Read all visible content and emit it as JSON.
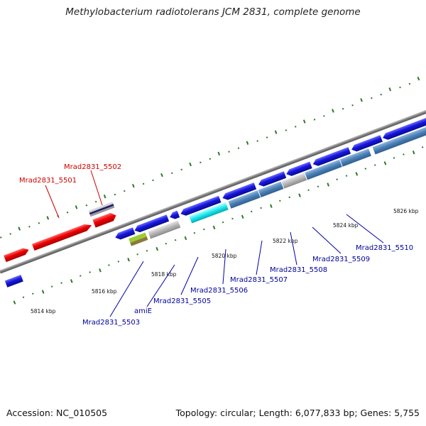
{
  "title": "Methylobacterium radiotolerans JCM 2831, complete genome",
  "footer": {
    "accession": "Accession: NC_010505",
    "stats": "Topology: circular; Length: 6,077,833 bp; Genes: 5,755"
  },
  "colors": {
    "backbone": "#8a8a8a",
    "forward_gene": "#e60000",
    "reverse_gene": "#1010d0",
    "steelblue_gene": "#4a7fb5",
    "gray_gene": "#b5b5b5",
    "cyan_gene": "#18e8f0",
    "forward_label": "#cc0000",
    "reverse_label": "#000099",
    "tick_mark": "#2a7a2a"
  },
  "ticks": [
    "5814 kbp",
    "5816 kbp",
    "5818 kbp",
    "5820 kbp",
    "5822 kbp",
    "5824 kbp",
    "5826 kbp"
  ],
  "forward_labels": [
    "Mrad2831_5501",
    "Mrad2831_5502"
  ],
  "reverse_labels": [
    "Mrad2831_5503",
    "amiE",
    "Mrad2831_5505",
    "Mrad2831_5506",
    "Mrad2831_5507",
    "Mrad2831_5508",
    "Mrad2831_5509",
    "Mrad2831_5510"
  ]
}
